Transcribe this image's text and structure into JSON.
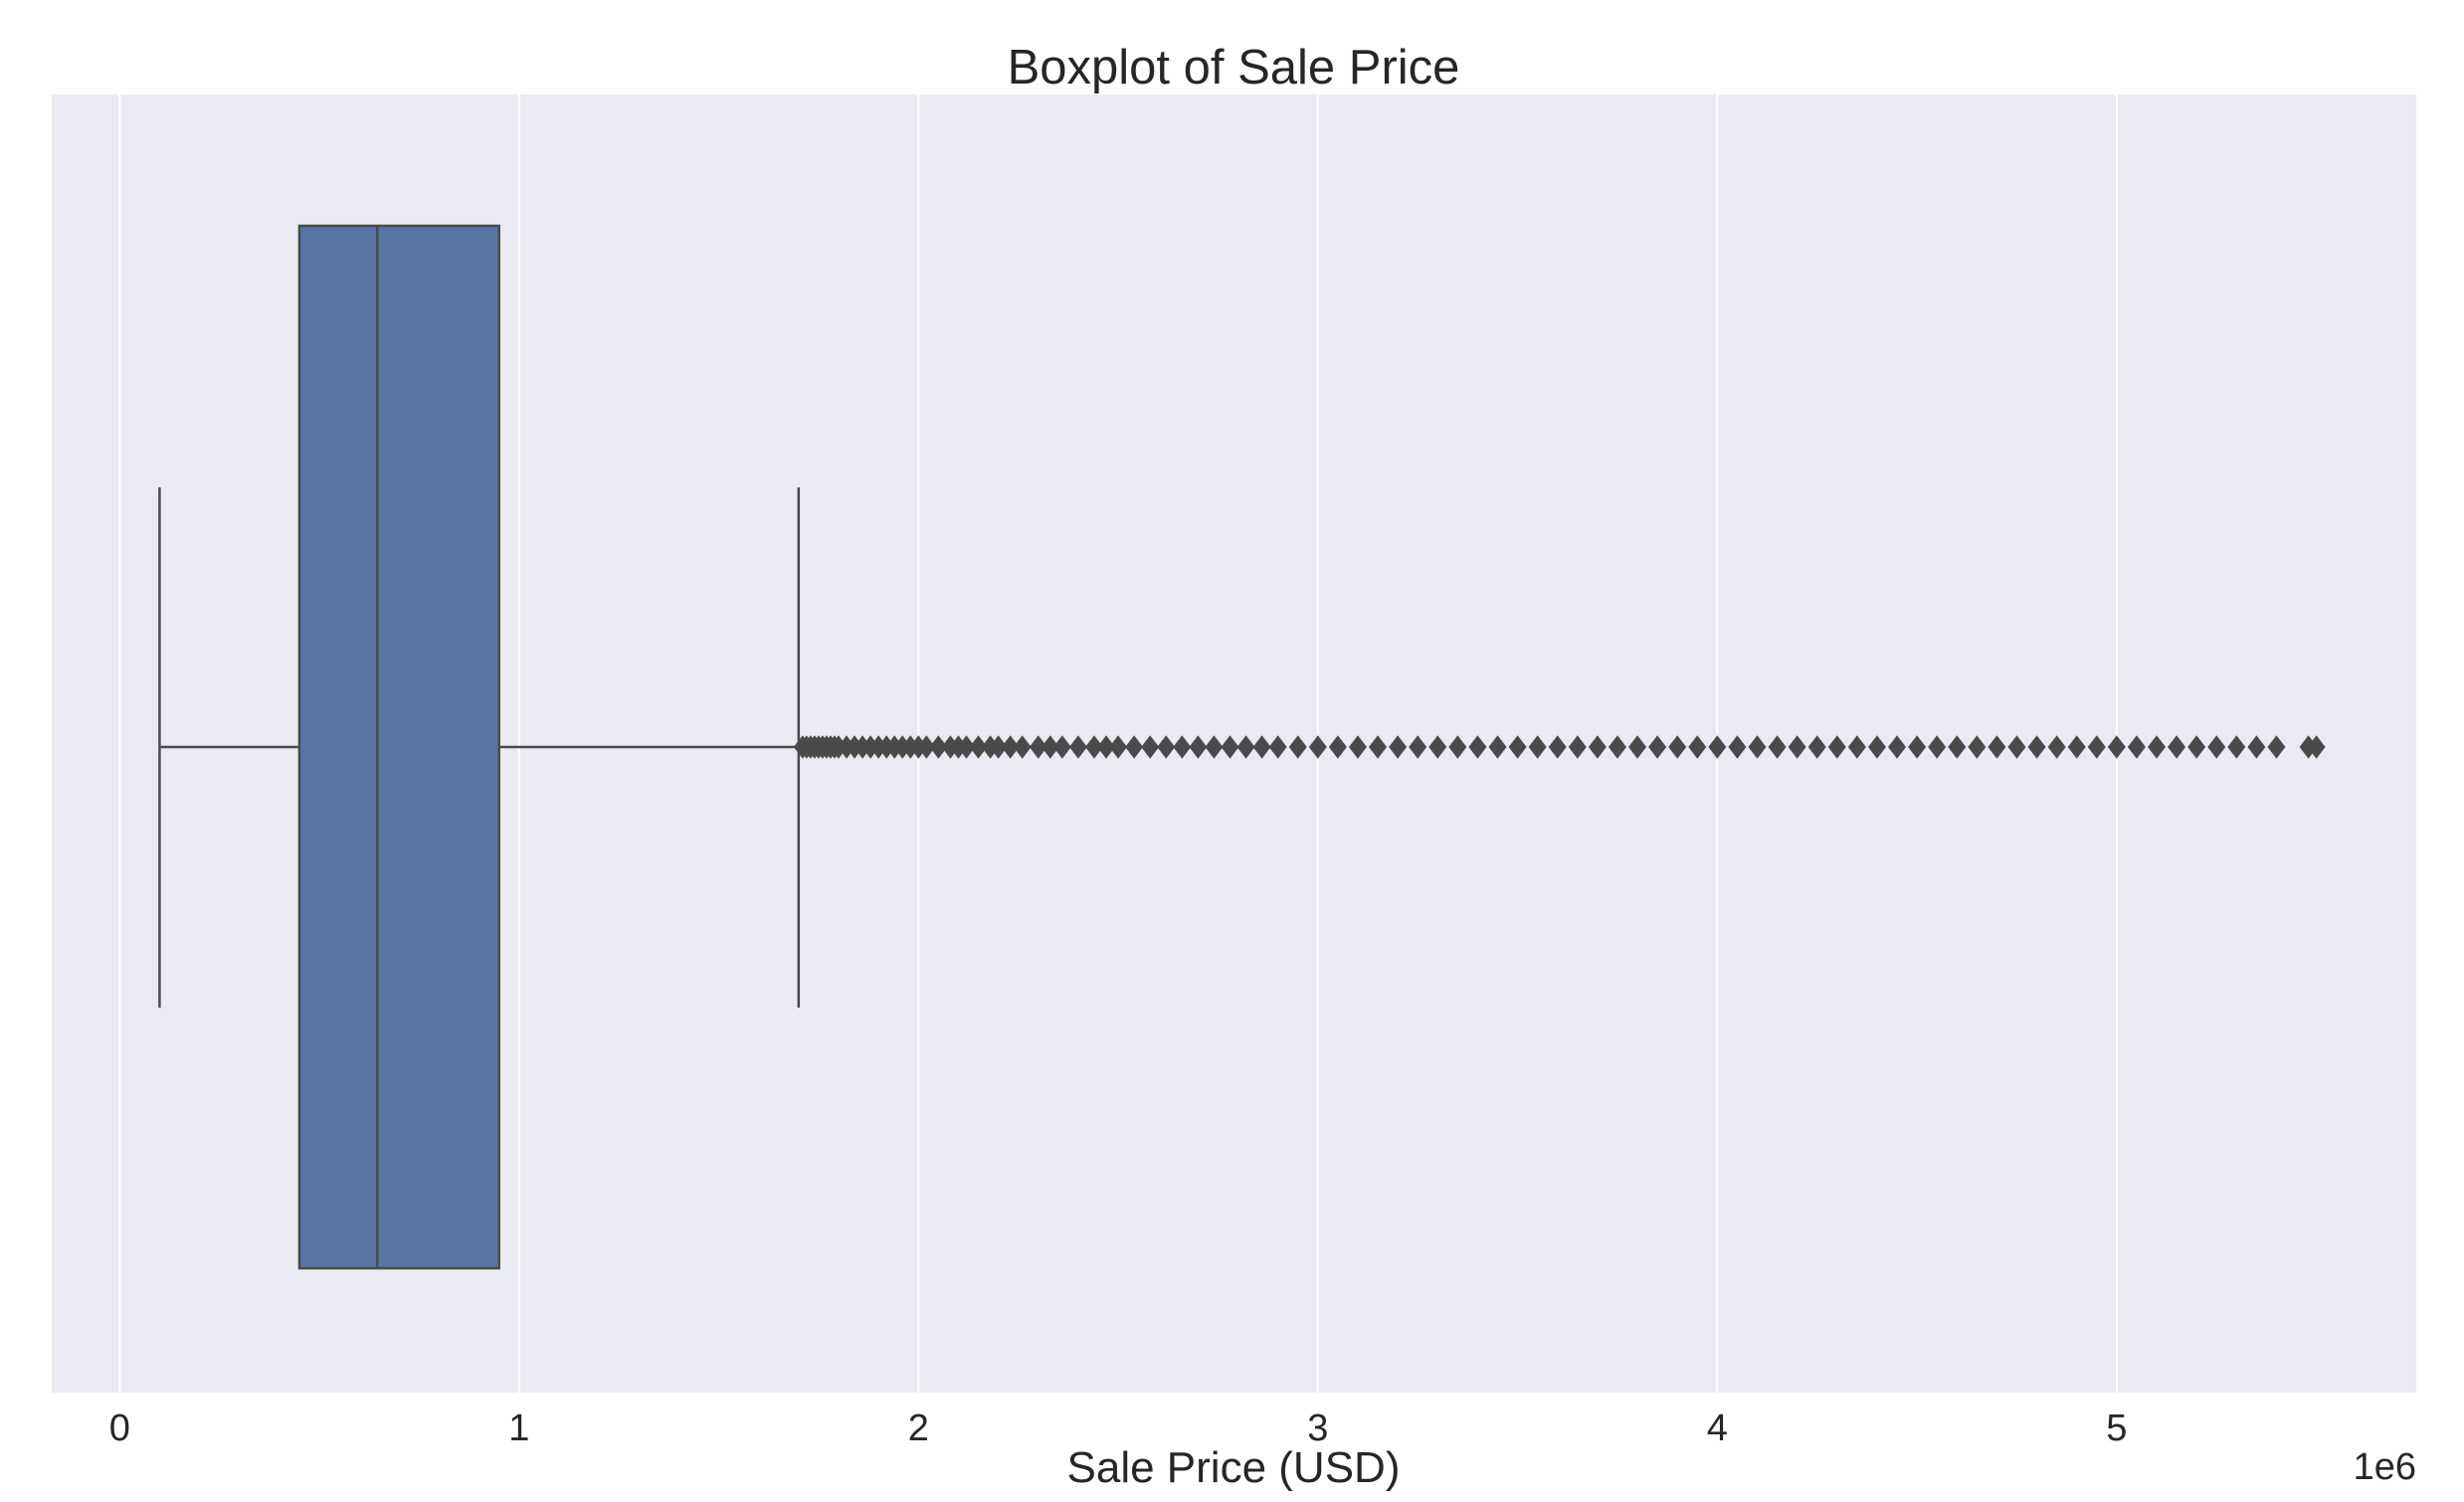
{
  "chart_data": {
    "type": "box",
    "title": "Boxplot of Sale Price",
    "xlabel": "Sale Price (USD)",
    "ylabel": "",
    "x_offset_label": "1e6",
    "xlim": [
      -0.17,
      5.75
    ],
    "x_ticks": [
      0,
      1,
      2,
      3,
      4,
      5
    ],
    "x_tick_labels": [
      "0",
      "1",
      "2",
      "3",
      "4",
      "5"
    ],
    "grid": true,
    "orientation": "horizontal",
    "units": "millions USD",
    "box": {
      "whisker_low": 0.1,
      "q1": 0.45,
      "median": 0.645,
      "q3": 0.95,
      "whisker_high": 1.7
    },
    "outliers": [
      1.71,
      1.72,
      1.73,
      1.74,
      1.75,
      1.76,
      1.77,
      1.78,
      1.79,
      1.8,
      1.82,
      1.84,
      1.86,
      1.88,
      1.9,
      1.92,
      1.94,
      1.96,
      1.98,
      2.0,
      2.02,
      2.05,
      2.08,
      2.1,
      2.12,
      2.15,
      2.18,
      2.2,
      2.23,
      2.26,
      2.3,
      2.33,
      2.36,
      2.4,
      2.44,
      2.47,
      2.5,
      2.54,
      2.58,
      2.62,
      2.66,
      2.7,
      2.74,
      2.78,
      2.82,
      2.86,
      2.9,
      2.95,
      3.0,
      3.05,
      3.1,
      3.15,
      3.2,
      3.25,
      3.3,
      3.35,
      3.4,
      3.45,
      3.5,
      3.55,
      3.6,
      3.65,
      3.7,
      3.75,
      3.8,
      3.85,
      3.9,
      3.95,
      4.0,
      4.05,
      4.1,
      4.15,
      4.2,
      4.25,
      4.3,
      4.35,
      4.4,
      4.45,
      4.5,
      4.55,
      4.6,
      4.65,
      4.7,
      4.75,
      4.8,
      4.85,
      4.9,
      4.95,
      5.0,
      5.05,
      5.1,
      5.15,
      5.2,
      5.25,
      5.3,
      5.35,
      5.4,
      5.48,
      5.5
    ],
    "colors": {
      "box_fill": "#5875a4",
      "line": "#4a4a4a",
      "plot_background": "#eaeaf2",
      "grid": "#ffffff",
      "outlier": "#4a4a4a"
    }
  }
}
